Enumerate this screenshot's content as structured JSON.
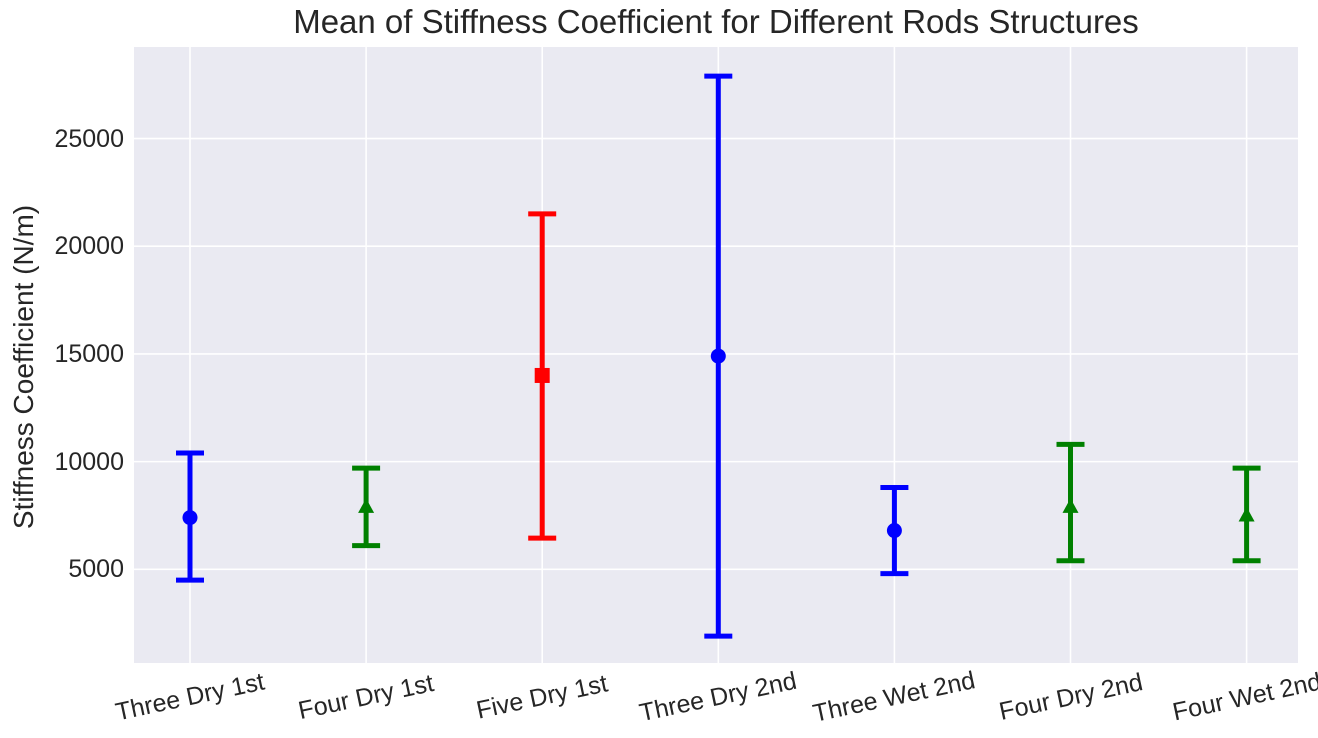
{
  "chart_data": {
    "type": "scatter",
    "subtype": "errorbar",
    "title": "Mean of Stiffness Coefficient for Different Rods Structures",
    "xlabel": "",
    "ylabel": "Stiffness Coefficient (N/m)",
    "categories": [
      "Three Dry 1st",
      "Four Dry 1st",
      "Five Dry 1st",
      "Three Dry 2nd",
      "Three Wet 2nd",
      "Four Dry 2nd",
      "Four Wet 2nd"
    ],
    "points": [
      {
        "label": "Three Dry 1st",
        "mean": 7400,
        "upper": 10400,
        "lower": 4500,
        "marker": "circle",
        "color": "#0000ff"
      },
      {
        "label": "Four Dry 1st",
        "mean": 7900,
        "upper": 9700,
        "lower": 6100,
        "marker": "triangle",
        "color": "#008000"
      },
      {
        "label": "Five Dry 1st",
        "mean": 14000,
        "upper": 21500,
        "lower": 6450,
        "marker": "square",
        "color": "#ff0000"
      },
      {
        "label": "Three Dry 2nd",
        "mean": 14900,
        "upper": 27900,
        "lower": 1900,
        "marker": "circle",
        "color": "#0000ff"
      },
      {
        "label": "Three Wet 2nd",
        "mean": 6800,
        "upper": 8800,
        "lower": 4800,
        "marker": "circle",
        "color": "#0000ff"
      },
      {
        "label": "Four Dry 2nd",
        "mean": 7900,
        "upper": 10800,
        "lower": 5400,
        "marker": "triangle",
        "color": "#008000"
      },
      {
        "label": "Four Wet 2nd",
        "mean": 7500,
        "upper": 9700,
        "lower": 5400,
        "marker": "triangle",
        "color": "#008000"
      }
    ],
    "yticks": [
      5000,
      10000,
      15000,
      20000,
      25000
    ],
    "ylim": [
      650,
      29250
    ],
    "grid": true,
    "legend": "none",
    "colors": {
      "plot_background": "#eaeaf2",
      "grid": "#ffffff",
      "text": "#262626",
      "blue_series": "#0000ff",
      "green_series": "#008000",
      "red_series": "#ff0000"
    }
  }
}
